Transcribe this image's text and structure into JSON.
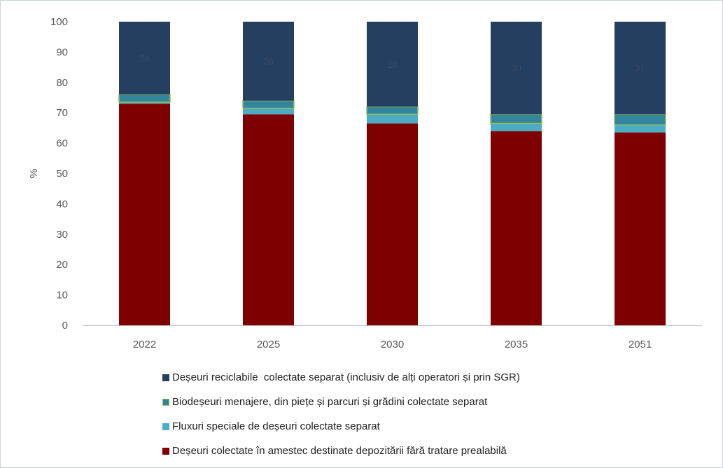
{
  "chart_data": {
    "type": "bar",
    "stacked": true,
    "categories": [
      "2022",
      "2025",
      "2030",
      "2035",
      "2051"
    ],
    "ylabel": "%",
    "xlabel": "",
    "ylim": [
      0,
      100
    ],
    "yticks": [
      0,
      10,
      20,
      30,
      40,
      50,
      60,
      70,
      80,
      90,
      100
    ],
    "grid": false,
    "legend_position": "bottom",
    "series": [
      {
        "name": "Deșeuri colectate în amestec destinate depozitării fără tratare prealabilă",
        "color": "#7f0000",
        "values": [
          73,
          69.5,
          66.5,
          64,
          63.5
        ]
      },
      {
        "name": "Fluxuri speciale de deșeuri colectate separat",
        "color": "#4bacc6",
        "values": [
          0.5,
          2,
          3,
          2.5,
          2.5
        ]
      },
      {
        "name": "Biodeșeuri menajere, din piețe și parcuri și grădini colectate separat",
        "color": "#31859c",
        "border": "#9bbb59",
        "values": [
          2.5,
          2.5,
          2.5,
          3,
          3.5
        ]
      },
      {
        "name": "Deșeuri reciclabile  colectate separat (inclusiv de alți operatori și prin SGR)",
        "color": "#243f60",
        "values": [
          24,
          26,
          28,
          30.5,
          30.5
        ],
        "data_labels": [
          "24",
          "26",
          "28",
          "30",
          "31"
        ]
      }
    ],
    "legend_order": [
      3,
      2,
      1,
      0
    ]
  }
}
